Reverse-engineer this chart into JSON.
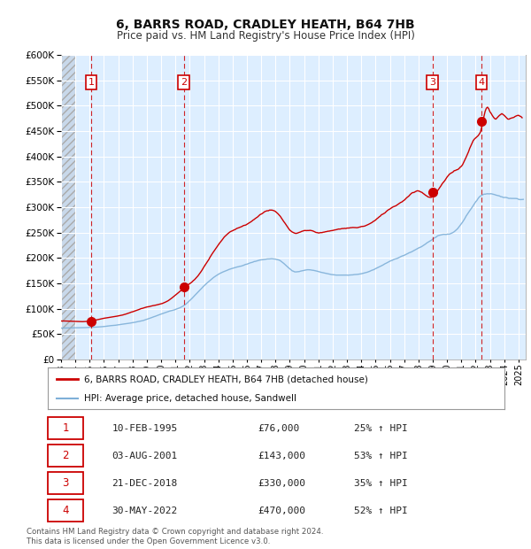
{
  "title1": "6, BARRS ROAD, CRADLEY HEATH, B64 7HB",
  "title2": "Price paid vs. HM Land Registry's House Price Index (HPI)",
  "background_color": "#ffffff",
  "plot_bg_color": "#ddeeff",
  "grid_color": "#ffffff",
  "purchases": [
    {
      "date_num": 1995.11,
      "price": 76000,
      "label": "1"
    },
    {
      "date_num": 2001.59,
      "price": 143000,
      "label": "2"
    },
    {
      "date_num": 2018.97,
      "price": 330000,
      "label": "3"
    },
    {
      "date_num": 2022.41,
      "price": 470000,
      "label": "4"
    }
  ],
  "purchase_color": "#cc0000",
  "hpi_color": "#7fb0d8",
  "table_entries": [
    {
      "label": "1",
      "date": "10-FEB-1995",
      "price": "£76,000",
      "change": "25% ↑ HPI"
    },
    {
      "label": "2",
      "date": "03-AUG-2001",
      "price": "£143,000",
      "change": "53% ↑ HPI"
    },
    {
      "label": "3",
      "date": "21-DEC-2018",
      "price": "£330,000",
      "change": "35% ↑ HPI"
    },
    {
      "label": "4",
      "date": "30-MAY-2022",
      "price": "£470,000",
      "change": "52% ↑ HPI"
    }
  ],
  "legend_line1": "6, BARRS ROAD, CRADLEY HEATH, B64 7HB (detached house)",
  "legend_line2": "HPI: Average price, detached house, Sandwell",
  "footnote": "Contains HM Land Registry data © Crown copyright and database right 2024.\nThis data is licensed under the Open Government Licence v3.0.",
  "xmin": 1993,
  "xmax": 2025.5,
  "ymin": 0,
  "ymax": 600000,
  "yticks": [
    0,
    50000,
    100000,
    150000,
    200000,
    250000,
    300000,
    350000,
    400000,
    450000,
    500000,
    550000,
    600000
  ]
}
